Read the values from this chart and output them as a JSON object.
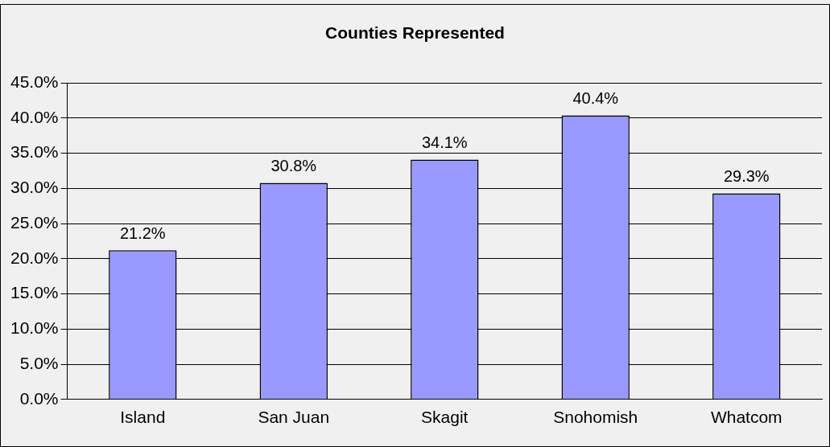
{
  "chart_data": {
    "type": "bar",
    "title": "Counties Represented",
    "categories": [
      "Island",
      "San Juan",
      "Skagit",
      "Snohomish",
      "Whatcom"
    ],
    "values": [
      21.2,
      30.8,
      34.1,
      40.4,
      29.3
    ],
    "value_labels": [
      "21.2%",
      "30.8%",
      "34.1%",
      "40.4%",
      "29.3%"
    ],
    "color": "#9999ff",
    "ylim": [
      0,
      45
    ],
    "yticks": [
      {
        "value": 0,
        "label": "0.0%"
      },
      {
        "value": 5,
        "label": "5.0%"
      },
      {
        "value": 10,
        "label": "10.0%"
      },
      {
        "value": 15,
        "label": "15.0%"
      },
      {
        "value": 20,
        "label": "20.0%"
      },
      {
        "value": 25,
        "label": "25.0%"
      },
      {
        "value": 30,
        "label": "30.0%"
      },
      {
        "value": 35,
        "label": "35.0%"
      },
      {
        "value": 40,
        "label": "40.0%"
      },
      {
        "value": 45,
        "label": "45.0%"
      }
    ],
    "grid": "y",
    "legend": false
  }
}
